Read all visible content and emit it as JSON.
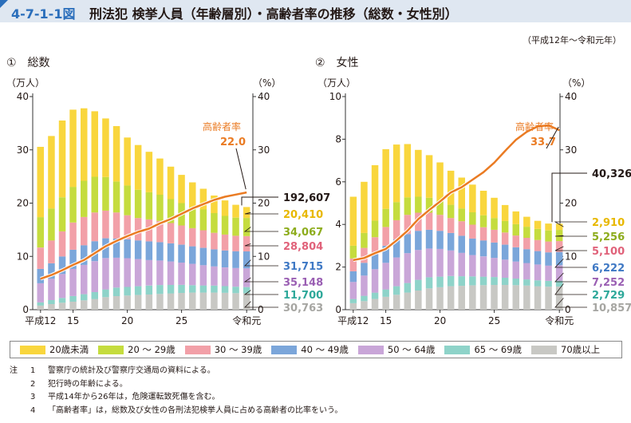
{
  "header": {
    "figure_id": "4-7-1-1図",
    "title": "刑法犯 検挙人員（年齢層別）・高齢者率の推移（総数・女性別）"
  },
  "period": "（平成12年～令和元年）",
  "legend": [
    {
      "label": "20歳未満",
      "color": "#f9d63d"
    },
    {
      "label": "20 ～ 29歳",
      "color": "#c5dc3e"
    },
    {
      "label": "30 ～ 39歳",
      "color": "#f2a0a8"
    },
    {
      "label": "40 ～ 49歳",
      "color": "#7ba6da"
    },
    {
      "label": "50 ～ 64歳",
      "color": "#c9a6d8"
    },
    {
      "label": "65 ～ 69歳",
      "color": "#8ed3c9"
    },
    {
      "label": "70歳以上",
      "color": "#c8c8c4"
    }
  ],
  "notes": {
    "head": "注",
    "items": [
      {
        "num": "1",
        "text": "警察庁の統計及び警察庁交通局の資料による。"
      },
      {
        "num": "2",
        "text": "犯行時の年齢による。"
      },
      {
        "num": "3",
        "text": "平成14年から26年は，危険運転致死傷を含む。"
      },
      {
        "num": "4",
        "text": "「高齢者率」は，総数及び女性の各刑法犯検挙人員に占める高齢者の比率をいう。"
      }
    ]
  },
  "colors": {
    "line": "#ea7b23",
    "rate_label": "#ea7b23",
    "title_blue": "#2a6ebb"
  },
  "chart_data": [
    {
      "type": "bar",
      "panel_title": "①　総数",
      "stacked": true,
      "y_left_label": "（万人）",
      "y_right_label": "（%）",
      "ylim": [
        0,
        40
      ],
      "ylim_right": [
        0,
        40
      ],
      "yticks": [
        "0",
        "10",
        "20",
        "30",
        "40"
      ],
      "yticks_right": [
        "0",
        "10",
        "20",
        "30",
        "40"
      ],
      "x_ticks": [
        "平成12",
        "15",
        "20",
        "25",
        "令和元"
      ],
      "years": [
        "H12",
        "H13",
        "H14",
        "H15",
        "H16",
        "H17",
        "H18",
        "H19",
        "H20",
        "H21",
        "H22",
        "H23",
        "H24",
        "H25",
        "H26",
        "H27",
        "H28",
        "H29",
        "H30",
        "R1"
      ],
      "series": [
        {
          "name": "70歳以上",
          "values": [
            0.76,
            1.05,
            1.3,
            1.5,
            1.75,
            2.0,
            2.35,
            2.55,
            2.65,
            2.75,
            2.85,
            2.95,
            3.05,
            3.15,
            3.2,
            3.2,
            3.2,
            3.15,
            3.1,
            3.0763
          ]
        },
        {
          "name": "65 ～ 69歳",
          "values": [
            0.6,
            0.75,
            0.9,
            1.05,
            1.15,
            1.3,
            1.45,
            1.6,
            1.62,
            1.65,
            1.68,
            1.68,
            1.6,
            1.5,
            1.4,
            1.35,
            1.32,
            1.28,
            1.22,
            1.17
          ]
        },
        {
          "name": "50 ～ 64歳",
          "values": [
            3.6,
            4.0,
            4.5,
            5.1,
            5.5,
            5.8,
            5.9,
            5.6,
            5.4,
            5.1,
            4.8,
            4.6,
            4.4,
            4.2,
            4.0,
            3.8,
            3.6,
            3.5,
            3.5,
            3.5148
          ]
        },
        {
          "name": "40 ～ 49歳",
          "values": [
            2.7,
            2.9,
            3.3,
            3.6,
            3.7,
            3.75,
            3.7,
            3.6,
            3.55,
            3.5,
            3.5,
            3.45,
            3.4,
            3.35,
            3.3,
            3.25,
            3.2,
            3.18,
            3.16,
            3.1715
          ]
        },
        {
          "name": "30 ～ 39歳",
          "values": [
            4.0,
            4.3,
            4.7,
            5.1,
            5.3,
            5.4,
            5.2,
            4.9,
            4.5,
            4.2,
            4.1,
            4.0,
            3.8,
            3.6,
            3.4,
            3.3,
            3.1,
            3.0,
            2.9,
            2.8804
          ]
        },
        {
          "name": "20 ～ 29歳",
          "values": [
            5.7,
            6.0,
            6.4,
            6.7,
            6.8,
            6.7,
            6.3,
            5.8,
            5.6,
            5.3,
            5.1,
            4.9,
            4.5,
            4.2,
            4.0,
            3.9,
            3.7,
            3.5,
            3.4,
            3.4067
          ]
        },
        {
          "name": "20歳未満",
          "values": [
            13.2,
            13.6,
            14.4,
            14.5,
            13.6,
            12.3,
            11.0,
            10.4,
            9.0,
            8.4,
            7.6,
            6.8,
            6.1,
            5.3,
            4.6,
            3.9,
            3.3,
            2.9,
            2.4,
            2.041
          ]
        }
      ],
      "rate": {
        "name": "高齢者率",
        "values": [
          5.8,
          6.5,
          7.4,
          8.4,
          9.3,
          10.6,
          11.9,
          12.9,
          13.8,
          14.6,
          15.2,
          16.2,
          17.0,
          18.0,
          19.0,
          19.8,
          20.6,
          21.2,
          21.6,
          22.0
        ]
      },
      "rate_label": "高齢者率",
      "rate_last": "22.0",
      "total_label": "192,607",
      "value_labels": [
        {
          "text": "20,410",
          "color": "#e8b800"
        },
        {
          "text": "34,067",
          "color": "#8dac1c"
        },
        {
          "text": "28,804",
          "color": "#e0627a"
        },
        {
          "text": "31,715",
          "color": "#3e78c4"
        },
        {
          "text": "35,148",
          "color": "#9a5fb3"
        },
        {
          "text": "11,700",
          "color": "#2ea89a"
        },
        {
          "text": "30,763",
          "color": "#a6a6a2"
        }
      ]
    },
    {
      "type": "bar",
      "panel_title": "②　女性",
      "stacked": true,
      "y_left_label": "（万人）",
      "y_right_label": "（%）",
      "ylim": [
        0,
        10
      ],
      "ylim_right": [
        0,
        40
      ],
      "yticks": [
        "0",
        "2",
        "4",
        "6",
        "8",
        "10"
      ],
      "yticks_right": [
        "0",
        "10",
        "20",
        "30",
        "40"
      ],
      "x_ticks": [
        "平成12",
        "15",
        "20",
        "25",
        "令和元"
      ],
      "years": [
        "H12",
        "H13",
        "H14",
        "H15",
        "H16",
        "H17",
        "H18",
        "H19",
        "H20",
        "H21",
        "H22",
        "H23",
        "H24",
        "H25",
        "H26",
        "H27",
        "H28",
        "H29",
        "H30",
        "R1"
      ],
      "series": [
        {
          "name": "70歳以上",
          "values": [
            0.3,
            0.4,
            0.5,
            0.6,
            0.7,
            0.8,
            0.9,
            1.0,
            1.05,
            1.1,
            1.12,
            1.14,
            1.15,
            1.16,
            1.16,
            1.15,
            1.13,
            1.1,
            1.08,
            1.0857
          ]
        },
        {
          "name": "65 ～ 69歳",
          "values": [
            0.2,
            0.25,
            0.3,
            0.35,
            0.4,
            0.45,
            0.5,
            0.52,
            0.5,
            0.48,
            0.45,
            0.42,
            0.4,
            0.37,
            0.34,
            0.31,
            0.29,
            0.28,
            0.27,
            0.2729
          ]
        },
        {
          "name": "50 ～ 64歳",
          "values": [
            0.8,
            0.95,
            1.1,
            1.25,
            1.35,
            1.4,
            1.4,
            1.35,
            1.3,
            1.2,
            1.1,
            1.0,
            0.95,
            0.9,
            0.85,
            0.8,
            0.77,
            0.74,
            0.72,
            0.7252
          ]
        },
        {
          "name": "40 ～ 49歳",
          "values": [
            0.5,
            0.6,
            0.7,
            0.8,
            0.85,
            0.9,
            0.9,
            0.88,
            0.85,
            0.82,
            0.8,
            0.78,
            0.75,
            0.72,
            0.7,
            0.67,
            0.65,
            0.63,
            0.62,
            0.6222
          ]
        },
        {
          "name": "30 ～ 39歳",
          "values": [
            0.6,
            0.7,
            0.8,
            0.88,
            0.9,
            0.9,
            0.85,
            0.8,
            0.75,
            0.7,
            0.68,
            0.65,
            0.62,
            0.6,
            0.57,
            0.55,
            0.53,
            0.52,
            0.51,
            0.51
          ]
        },
        {
          "name": "20 ～ 29歳",
          "values": [
            0.6,
            0.7,
            0.78,
            0.85,
            0.85,
            0.82,
            0.75,
            0.7,
            0.66,
            0.62,
            0.6,
            0.58,
            0.56,
            0.55,
            0.54,
            0.53,
            0.52,
            0.52,
            0.52,
            0.5256
          ]
        },
        {
          "name": "20歳未満",
          "values": [
            2.3,
            2.4,
            2.6,
            2.8,
            2.7,
            2.5,
            2.2,
            2.0,
            1.8,
            1.6,
            1.45,
            1.3,
            1.15,
            0.95,
            0.75,
            0.6,
            0.47,
            0.38,
            0.32,
            0.291
          ]
        }
      ],
      "rate": {
        "name": "高齢者率",
        "values": [
          9.3,
          9.7,
          10.6,
          11.4,
          13.0,
          14.8,
          17.0,
          18.7,
          20.3,
          22.0,
          23.0,
          24.4,
          25.8,
          27.6,
          29.8,
          31.9,
          33.4,
          34.4,
          34.6,
          33.7
        ]
      },
      "rate_label": "高齢者率",
      "rate_last": "33.7",
      "total_label": "40,326",
      "value_labels": [
        {
          "text": "2,910",
          "color": "#e8b800"
        },
        {
          "text": "5,256",
          "color": "#8dac1c"
        },
        {
          "text": "5,100",
          "color": "#e0627a"
        },
        {
          "text": "6,222",
          "color": "#3e78c4"
        },
        {
          "text": "7,252",
          "color": "#9a5fb3"
        },
        {
          "text": "2,729",
          "color": "#2ea89a"
        },
        {
          "text": "10,857",
          "color": "#a6a6a2"
        }
      ]
    }
  ]
}
